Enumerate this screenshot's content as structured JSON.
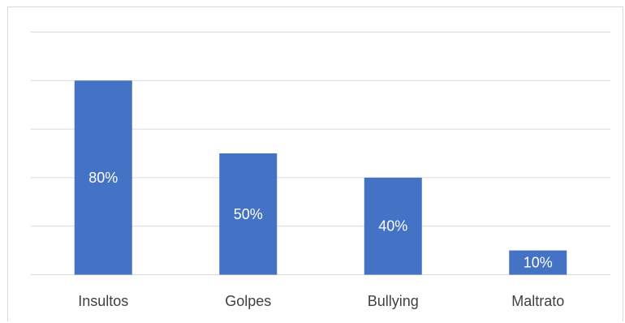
{
  "chart_data": {
    "type": "bar",
    "categories": [
      "Insultos",
      "Golpes",
      "Bullying",
      "Maltrato"
    ],
    "values": [
      80,
      50,
      40,
      10
    ],
    "value_labels": [
      "80%",
      "50%",
      "40%",
      "10%"
    ],
    "title": "",
    "xlabel": "",
    "ylabel": "",
    "ylim": [
      0,
      100
    ],
    "grid": true,
    "legend": "none",
    "bar_color": "#4472c4",
    "gridline_color": "#d9d9d9",
    "label_color": "#ffffff",
    "axis_text_color": "#404040"
  }
}
